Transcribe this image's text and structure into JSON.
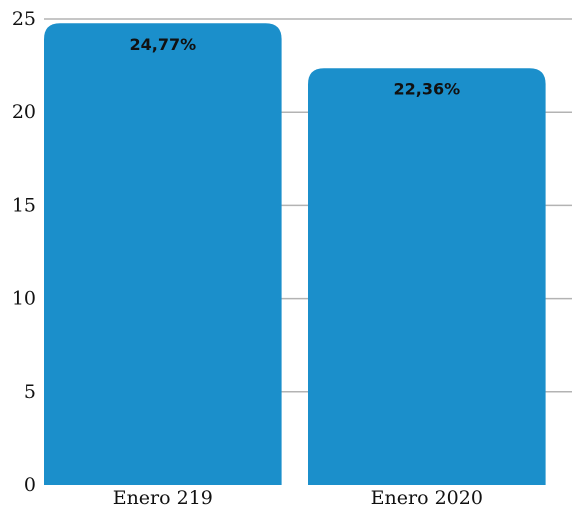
{
  "chart_data": {
    "type": "bar",
    "title": "",
    "xlabel": "",
    "ylabel": "",
    "categories": [
      "Enero 219",
      "Enero 2020"
    ],
    "values": [
      24.77,
      22.36
    ],
    "data_labels": [
      "24,77%",
      "22,36%"
    ],
    "ylim": [
      0,
      25
    ],
    "yticks": [
      0,
      5,
      10,
      15,
      20,
      25
    ],
    "ytick_labels": [
      "0",
      "5",
      "10",
      "15",
      "20",
      "25"
    ],
    "grid": true,
    "legend": "none",
    "bar_color": "#1b8fcb"
  }
}
